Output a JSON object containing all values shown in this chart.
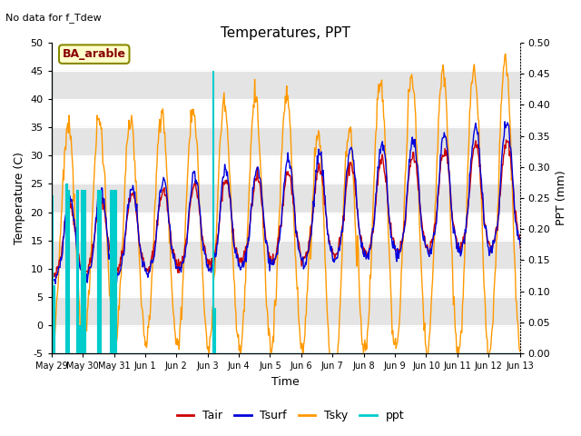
{
  "title": "Temperatures, PPT",
  "subtitle": "No data for f_Tdew",
  "annotation": "BA_arable",
  "xlabel": "Time",
  "ylabel_left": "Temperature (C)",
  "ylabel_right": "PPT (mm)",
  "ylim_left": [
    -5,
    50
  ],
  "ylim_right": [
    0.0,
    0.5
  ],
  "yticks_left": [
    -5,
    0,
    5,
    10,
    15,
    20,
    25,
    30,
    35,
    40,
    45,
    50
  ],
  "yticks_right": [
    0.0,
    0.05,
    0.1,
    0.15,
    0.2,
    0.25,
    0.3,
    0.35,
    0.4,
    0.45,
    0.5
  ],
  "xtick_labels": [
    "May 29",
    "May 30",
    "May 31",
    "Jun 1",
    "Jun 2",
    "Jun 3",
    "Jun 4",
    "Jun 5",
    "Jun 6",
    "Jun 7",
    "Jun 8",
    "Jun 9",
    "Jun 10",
    "Jun 11",
    "Jun 12",
    "Jun 13"
  ],
  "n_days": 16,
  "pts_per_day": 48,
  "colors": {
    "Tair": "#cc0000",
    "Tsurf": "#0000dd",
    "Tsky": "#ff9900",
    "ppt": "#00cccc",
    "band_gray": "#e4e4e4"
  }
}
